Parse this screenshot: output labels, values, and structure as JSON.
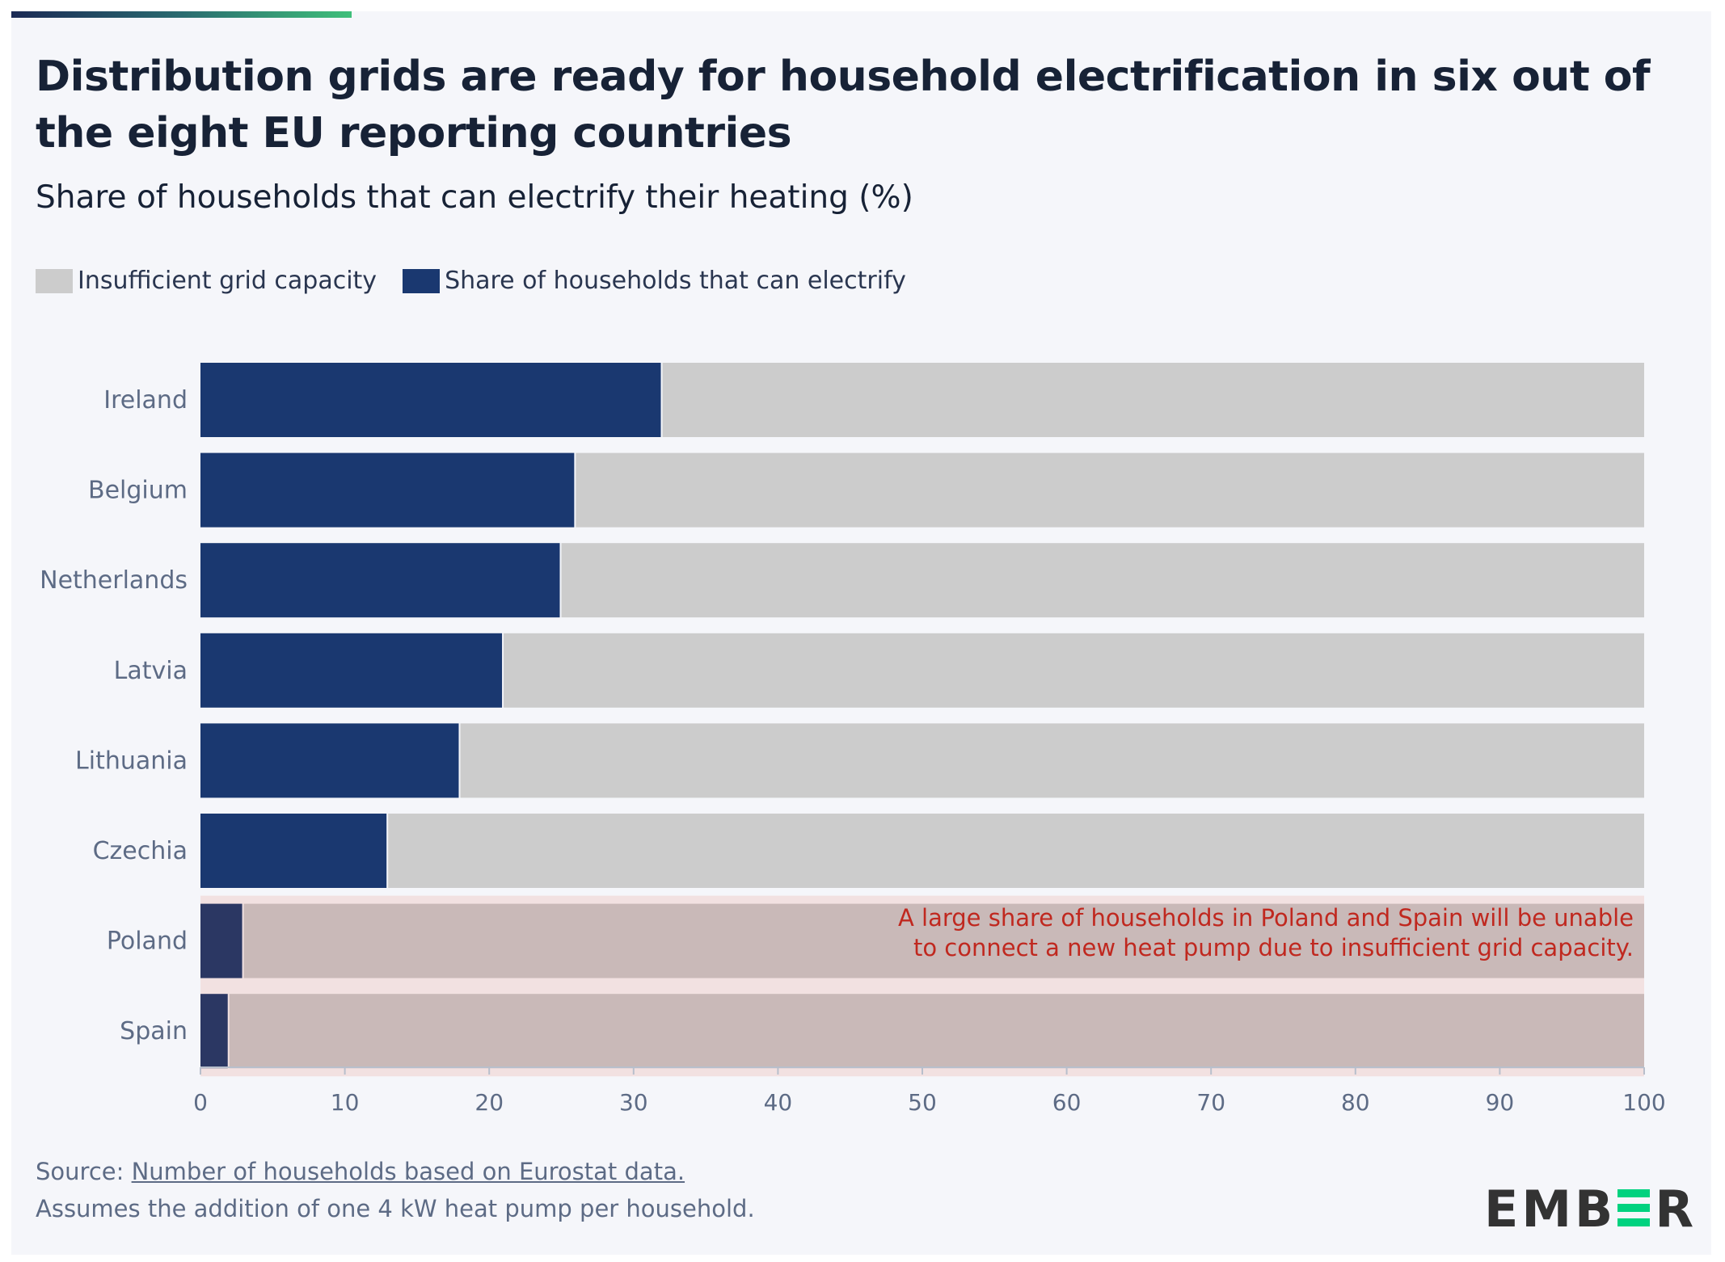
{
  "title": "Distribution grids are ready for household electrification in six out of the eight EU reporting countries",
  "subtitle": "Share of households that can electrify their heating (%)",
  "legend": [
    {
      "label": "Insufficient grid capacity",
      "color": "#cccccc"
    },
    {
      "label": "Share of households that can electrify",
      "color": "#1a3870"
    }
  ],
  "chart_data": {
    "type": "bar",
    "orientation": "horizontal",
    "stacked": true,
    "categories": [
      "Ireland",
      "Belgium",
      "Netherlands",
      "Latvia",
      "Lithuania",
      "Czechia",
      "Poland",
      "Spain"
    ],
    "series": [
      {
        "name": "Share of households that can electrify",
        "values": [
          32,
          26,
          25,
          21,
          18,
          13,
          3,
          2
        ],
        "color": "#1a3870"
      },
      {
        "name": "Insufficient grid capacity",
        "values": [
          68,
          74,
          75,
          79,
          82,
          87,
          97,
          98
        ],
        "color": "#cccccc"
      }
    ],
    "highlighted": [
      "Poland",
      "Spain"
    ],
    "xlim": [
      0,
      100
    ],
    "xticks": [
      "0",
      "10",
      "20",
      "30",
      "40",
      "50",
      "60",
      "70",
      "80",
      "90",
      "100"
    ],
    "annotation": [
      "A large share of households in Poland and Spain will be unable",
      "to connect a new heat pump due to insufficient grid capacity."
    ],
    "annotation_color": "#c0281f",
    "grid": false,
    "legend_position": "top-left"
  },
  "footer": {
    "source_prefix": "Source: ",
    "source_link": "Number of households based on Eurostat data.",
    "note": "Assumes the addition of one 4 kW heat pump per household."
  },
  "logo": "EMBER"
}
